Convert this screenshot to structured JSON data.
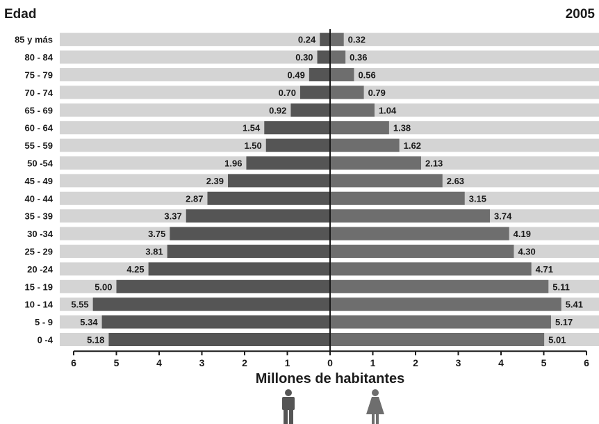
{
  "chart_data": {
    "type": "bar",
    "subtype": "population-pyramid",
    "title": "2005",
    "ylabel": "Edad",
    "xlabel": "Millones de habitantes",
    "categories": [
      "85 y más",
      "80 - 84",
      "75 - 79",
      "70 - 74",
      "65 - 69",
      "60 - 64",
      "55 - 59",
      "50 -54",
      "45 - 49",
      "40 - 44",
      "35 - 39",
      "30 -34",
      "25 - 29",
      "20 -24",
      "15 - 19",
      "10 - 14",
      "5 - 9",
      "0 -4"
    ],
    "series": [
      {
        "name": "",
        "side": "left",
        "icon": "male-icon",
        "values": [
          0.24,
          0.3,
          0.49,
          0.7,
          0.92,
          1.54,
          1.5,
          1.96,
          2.39,
          2.87,
          3.37,
          3.75,
          3.81,
          4.25,
          5.0,
          5.55,
          5.34,
          5.18
        ],
        "labels": [
          "0.24",
          "0.30",
          "0.49",
          "0.70",
          "0.92",
          "1.54",
          "1.50",
          "1.96",
          "2.39",
          "2.87",
          "3.37",
          "3.75",
          "3.81",
          "4.25",
          "5.00",
          "5.55",
          "5.34",
          "5.18"
        ]
      },
      {
        "name": "",
        "side": "right",
        "icon": "female-icon",
        "values": [
          0.32,
          0.36,
          0.56,
          0.79,
          1.04,
          1.38,
          1.62,
          2.13,
          2.63,
          3.15,
          3.74,
          4.19,
          4.3,
          4.71,
          5.11,
          5.41,
          5.17,
          5.01
        ],
        "labels": [
          "0.32",
          "0.36",
          "0.56",
          "0.79",
          "1.04",
          "1.38",
          "1.62",
          "2.13",
          "2.63",
          "3.15",
          "3.74",
          "4.19",
          "4.30",
          "4.71",
          "5.11",
          "5.41",
          "5.17",
          "5.01"
        ]
      }
    ],
    "xlim": [
      -6,
      6
    ],
    "xticks": [
      "6",
      "5",
      "4",
      "3",
      "2",
      "1",
      "0",
      "1",
      "2",
      "3",
      "4",
      "5",
      "6"
    ],
    "grid": false,
    "colors": {
      "left_bar": "#555555",
      "right_bar": "#6e6e6e",
      "row_band": "#d4d4d4",
      "axis": "#1a1a1a"
    }
  }
}
